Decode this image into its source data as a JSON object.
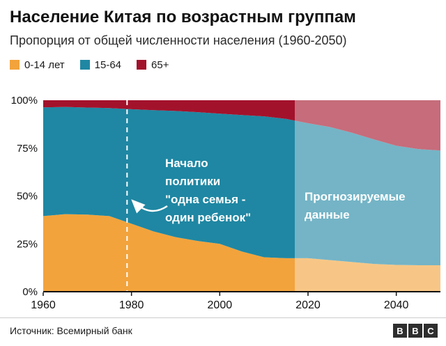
{
  "header": {
    "title": "Население Китая по возрастным группам",
    "subtitle": "Пропорция от общей численности населения (1960-2050)"
  },
  "legend": [
    {
      "label": "0-14 лет",
      "color": "#f2a33c"
    },
    {
      "label": "15-64",
      "color": "#1f87a3"
    },
    {
      "label": "65+",
      "color": "#a3122b"
    }
  ],
  "annotations": {
    "policy": {
      "lines": [
        "Начало",
        "политики",
        "\"одна семья -",
        "один ребенок\""
      ],
      "year": 1979
    },
    "forecast": {
      "lines": [
        "Прогнозируемые",
        "данные"
      ],
      "start_year": 2017
    }
  },
  "footer": {
    "source": "Источник: Всемирный банк",
    "logo": [
      "B",
      "B",
      "C"
    ]
  },
  "chart_data": {
    "type": "area",
    "stacked": true,
    "unit": "%",
    "title": "Население Китая по возрастным группам",
    "subtitle": "Пропорция от общей численности населения (1960-2050)",
    "xlabel": "",
    "ylabel": "",
    "ylim": [
      0,
      100
    ],
    "x": [
      1960,
      1965,
      1970,
      1975,
      1980,
      1985,
      1990,
      1995,
      2000,
      2005,
      2010,
      2015,
      2020,
      2025,
      2030,
      2035,
      2040,
      2045,
      2050
    ],
    "series": [
      {
        "name": "0-14 лет",
        "color": "#f2a33c",
        "values": [
          39.5,
          40.5,
          40.3,
          39.5,
          35.5,
          31.5,
          28.5,
          26.5,
          25.0,
          21.0,
          18.0,
          17.5,
          17.5,
          16.5,
          15.5,
          14.5,
          14.0,
          13.8,
          13.8
        ]
      },
      {
        "name": "15-64",
        "color": "#1f87a3",
        "values": [
          56.8,
          56.0,
          55.9,
          56.4,
          59.8,
          63.3,
          65.9,
          67.3,
          68.0,
          71.3,
          73.6,
          72.8,
          70.5,
          69.5,
          67.5,
          65.0,
          62.2,
          60.7,
          59.9
        ]
      },
      {
        "name": "65+",
        "color": "#a3122b",
        "values": [
          3.7,
          3.5,
          3.8,
          4.1,
          4.7,
          5.2,
          5.6,
          6.2,
          7.0,
          7.7,
          8.4,
          9.7,
          12.0,
          14.0,
          17.0,
          20.5,
          23.8,
          25.5,
          26.3
        ]
      }
    ],
    "xticks": [
      1960,
      1980,
      2000,
      2020,
      2040
    ],
    "yticks": [
      {
        "label": "100%",
        "value": 100
      },
      {
        "label": "75%",
        "value": 75
      },
      {
        "label": "50%",
        "value": 50
      },
      {
        "label": "25%",
        "value": 25
      },
      {
        "label": "0%",
        "value": 0
      }
    ],
    "policy_line_year": 1979,
    "forecast_start_year": 2017,
    "legend_position": "top",
    "grid": false
  }
}
